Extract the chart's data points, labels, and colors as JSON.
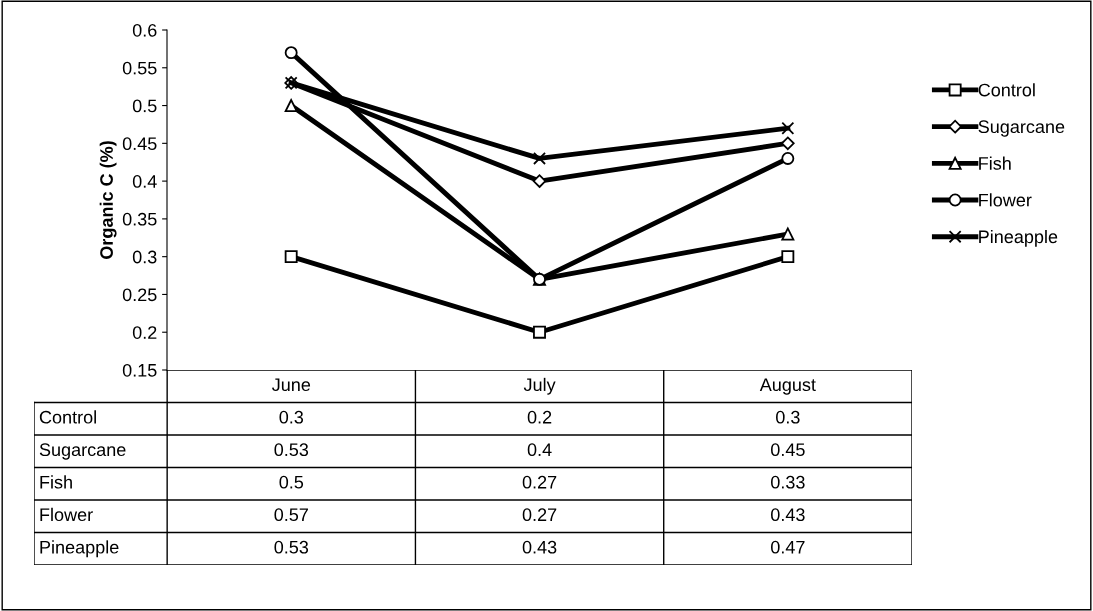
{
  "chart_data": {
    "type": "line",
    "ylabel": "Organic C (%)",
    "categories": [
      "June",
      "July",
      "August"
    ],
    "series": [
      {
        "name": "Control",
        "color": "#000000",
        "marker": "square",
        "values": [
          0.3,
          0.2,
          0.3
        ]
      },
      {
        "name": "Sugarcane",
        "color": "#000000",
        "marker": "diamond",
        "values": [
          0.53,
          0.4,
          0.45
        ]
      },
      {
        "name": "Fish",
        "color": "#000000",
        "marker": "triangle",
        "values": [
          0.5,
          0.27,
          0.33
        ]
      },
      {
        "name": "Flower",
        "color": "#000000",
        "marker": "circle",
        "values": [
          0.57,
          0.27,
          0.43
        ]
      },
      {
        "name": "Pineapple",
        "color": "#000000",
        "marker": "cross",
        "values": [
          0.53,
          0.43,
          0.47
        ]
      }
    ],
    "ylim": [
      0.15,
      0.6
    ],
    "yticks": [
      0.15,
      0.2,
      0.25,
      0.3,
      0.35,
      0.4,
      0.45,
      0.5,
      0.55,
      0.6
    ],
    "grid": false,
    "legend": "right",
    "data_labels": true,
    "line_style": "solid"
  }
}
